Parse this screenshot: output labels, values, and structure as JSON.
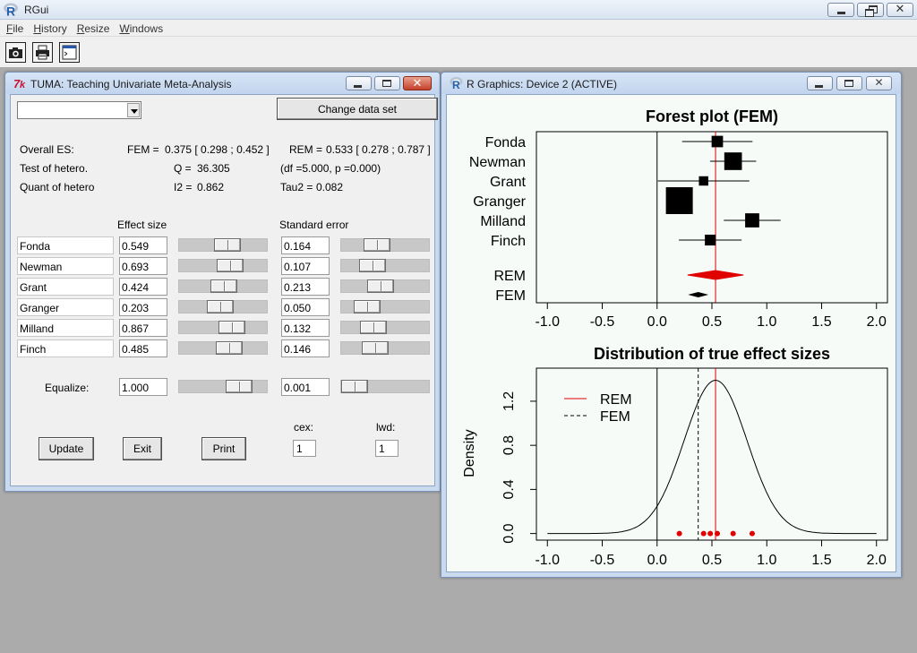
{
  "app": {
    "title": "RGui",
    "logo_icon": "r-logo-icon"
  },
  "menu": [
    {
      "key": "F",
      "rest": "ile"
    },
    {
      "key": "H",
      "rest": "istory"
    },
    {
      "key": "R",
      "rest": "esize"
    },
    {
      "key": "W",
      "rest": "indows"
    }
  ],
  "toolbar": {
    "icons": [
      "camera-icon",
      "printer-icon",
      "console-window-icon"
    ]
  },
  "tuma": {
    "title": "TUMA: Teaching Univariate Meta-Analysis",
    "dataset_combo": "",
    "change_data_label": "Change data set",
    "summary": {
      "overall_label": "Overall ES:",
      "fem_label": "FEM =",
      "fem_value": "0.375 [ 0.298 ; 0.452 ]",
      "rem_label": "REM =",
      "rem_value": "0.533 [ 0.278 ; 0.787 ]",
      "hetero_label": "Test of hetero.",
      "q_label": "Q =",
      "q_value": "36.305",
      "df_text": "(df =5.000, p =0.000)",
      "quant_label": "Quant of hetero",
      "i2_label": "I2 =",
      "i2_value": "0.862",
      "tau2_label": "Tau2 =",
      "tau2_value": "0.082"
    },
    "col_effect": "Effect size",
    "col_se": "Standard error",
    "studies": [
      {
        "name": "Fonda",
        "es": "0.549",
        "se": "0.164",
        "es_slider": 0.55,
        "se_slider": 0.22
      },
      {
        "name": "Newman",
        "es": "0.693",
        "se": "0.107",
        "es_slider": 0.6,
        "se_slider": 0.14
      },
      {
        "name": "Grant",
        "es": "0.424",
        "se": "0.213",
        "es_slider": 0.5,
        "se_slider": 0.27
      },
      {
        "name": "Granger",
        "es": "0.203",
        "se": "0.050",
        "es_slider": 0.44,
        "se_slider": 0.05
      },
      {
        "name": "Milland",
        "es": "0.867",
        "se": "0.132",
        "es_slider": 0.63,
        "se_slider": 0.16
      },
      {
        "name": "Finch",
        "es": "0.485",
        "se": "0.146",
        "es_slider": 0.59,
        "se_slider": 0.18
      }
    ],
    "equalize_label": "Equalize:",
    "equalize_es": "1.000",
    "equalize_se": "0.001",
    "equalize_es_slider": 0.63,
    "equalize_se_slider": 0.0,
    "cex_label": "cex:",
    "cex_value": "1",
    "lwd_label": "lwd:",
    "lwd_value": "1",
    "update_label": "Update",
    "exit_label": "Exit",
    "print_label": "Print"
  },
  "graphics": {
    "title": "R Graphics: Device 2 (ACTIVE)",
    "logo_icon": "r-logo-icon"
  },
  "chart_data": [
    {
      "type": "scatter",
      "title": "Forest plot (FEM)",
      "xlabel": "",
      "ylabel": "",
      "xlim": [
        -1.0,
        2.0
      ],
      "xticks": [
        "-1.0",
        "-0.5",
        "0.0",
        "0.5",
        "1.0",
        "1.5",
        "2.0"
      ],
      "reference_line": 0.533,
      "studies": [
        {
          "name": "Fonda",
          "est": 0.549,
          "lo": 0.228,
          "hi": 0.87,
          "weight": 0.25
        },
        {
          "name": "Newman",
          "est": 0.693,
          "lo": 0.483,
          "hi": 0.903,
          "weight": 0.55
        },
        {
          "name": "Grant",
          "est": 0.424,
          "lo": 0.007,
          "hi": 0.841,
          "weight": 0.15
        },
        {
          "name": "Granger",
          "est": 0.203,
          "lo": 0.105,
          "hi": 0.301,
          "weight": 1.0
        },
        {
          "name": "Milland",
          "est": 0.867,
          "lo": 0.608,
          "hi": 1.126,
          "weight": 0.38
        },
        {
          "name": "Finch",
          "est": 0.485,
          "lo": 0.199,
          "hi": 0.771,
          "weight": 0.22
        }
      ],
      "summaries": [
        {
          "name": "REM",
          "est": 0.533,
          "lo": 0.278,
          "hi": 0.787,
          "color": "#e00000"
        },
        {
          "name": "FEM",
          "est": 0.375,
          "lo": 0.298,
          "hi": 0.452,
          "color": "#000000"
        }
      ]
    },
    {
      "type": "line",
      "title": "Distribution of true effect sizes",
      "xlabel": "",
      "ylabel": "Density",
      "xlim": [
        -1.0,
        2.0
      ],
      "ylim": [
        0.0,
        1.45
      ],
      "xticks": [
        "-1.0",
        "-0.5",
        "0.0",
        "0.5",
        "1.0",
        "1.5",
        "2.0"
      ],
      "yticks": [
        "0.0",
        "0.4",
        "0.8",
        "1.2"
      ],
      "density": {
        "mean": 0.533,
        "sd": 0.287,
        "from": -1.0,
        "to": 2.0
      },
      "vlines": [
        {
          "name": "REM",
          "x": 0.533,
          "color": "#e00000",
          "dash": false
        },
        {
          "name": "FEM",
          "x": 0.375,
          "color": "#000000",
          "dash": true
        }
      ],
      "points": [
        0.549,
        0.693,
        0.424,
        0.203,
        0.867,
        0.485
      ],
      "point_color": "#e00000",
      "legend": [
        {
          "label": "REM",
          "color": "#e00000",
          "dash": false
        },
        {
          "label": "FEM",
          "color": "#000000",
          "dash": true
        }
      ]
    }
  ]
}
